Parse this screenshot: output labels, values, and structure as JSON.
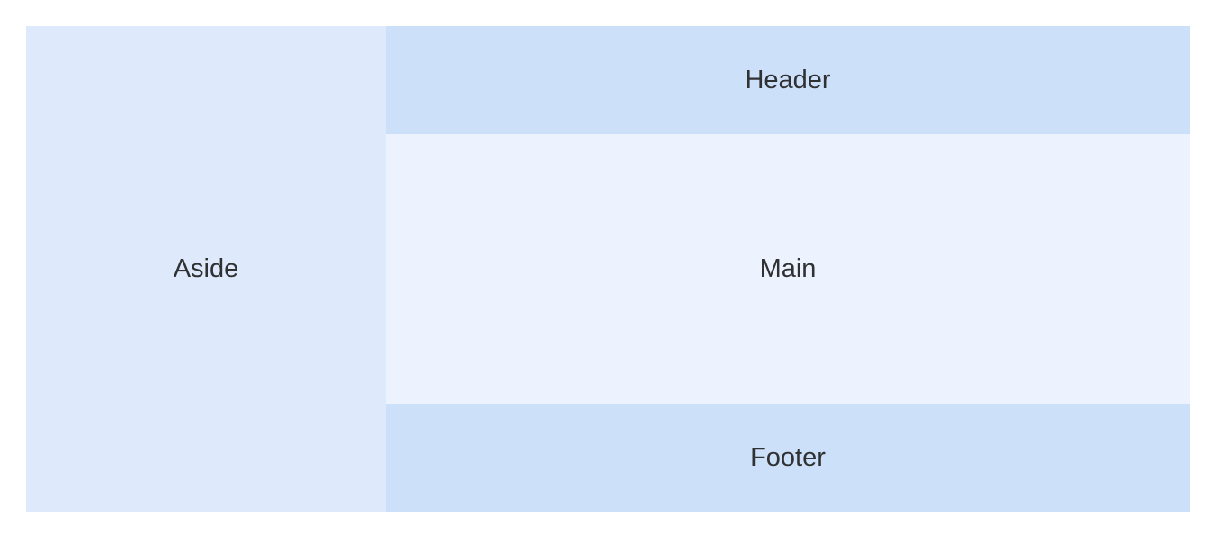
{
  "layout": {
    "aside": {
      "label": "Aside"
    },
    "header": {
      "label": "Header"
    },
    "main": {
      "label": "Main"
    },
    "footer": {
      "label": "Footer"
    }
  },
  "colors": {
    "aside_bg": "#DEEAFC",
    "header_bg": "#CCE0FA",
    "main_bg": "#ECF3FE",
    "footer_bg": "#CCE0FA",
    "text": "#303133"
  }
}
